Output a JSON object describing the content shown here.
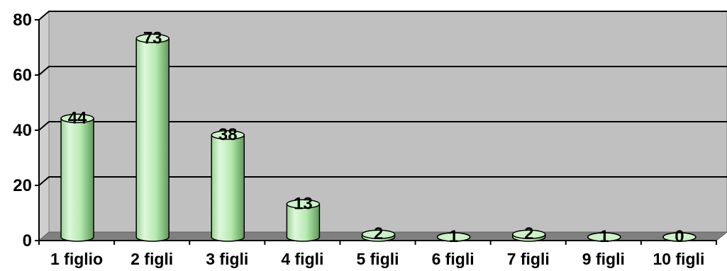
{
  "chart_data": {
    "type": "bar",
    "style": "3d-cylinder",
    "categories": [
      "1 figlio",
      "2 figli",
      "3 figli",
      "4 figli",
      "5 figli",
      "6 figli",
      "7 figli",
      "9 figli",
      "10 figli"
    ],
    "values": [
      44,
      73,
      38,
      13,
      2,
      1,
      2,
      1,
      0
    ],
    "title": "",
    "xlabel": "",
    "ylabel": "",
    "ylim": [
      0,
      80
    ],
    "yticks": [
      0,
      20,
      40,
      60,
      80
    ],
    "grid": true,
    "legend": "none",
    "colors": {
      "bar_light": "#dff7dc",
      "bar_mid": "#b6eab0",
      "bar_dark": "#5f9a59",
      "bar_top": "#cdf2c8",
      "plot_back": "#c0c0c0",
      "plot_floor": "#808080",
      "side_wall": "#cfcfcf",
      "gridline": "#000000"
    }
  }
}
